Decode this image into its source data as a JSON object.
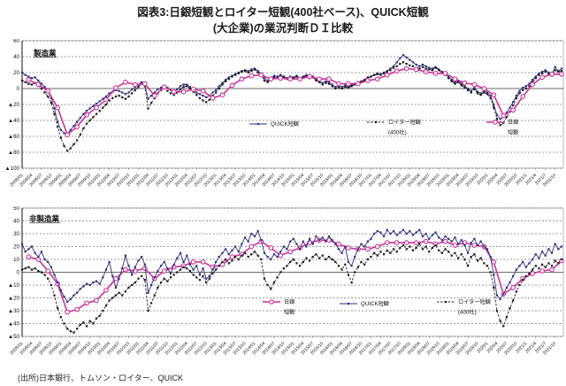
{
  "title_line1": "図表3:日銀短観とロイター短観(400社ベース)、QUICK短観",
  "title_line2": "(大企業)の業況判断ＤＩ比較",
  "source": "(出所)日本銀行、トムソン・ロイター、QUICK",
  "colors": {
    "boj": "#CC3399",
    "quick": "#2F2F7F",
    "reuters": "#1A1A1A"
  },
  "x_axis_labels": [
    "2008/01",
    "2008/04",
    "2008/07",
    "2008/10",
    "2009/01",
    "2009/04",
    "2009/07",
    "2009/10",
    "2010/01",
    "2010/04",
    "2010/07",
    "2010/10",
    "2011/01",
    "2011/04",
    "2011/07",
    "2011/10",
    "2012/01",
    "2012/04",
    "2012/07",
    "2012/10",
    "2013/01",
    "2013/04",
    "2013/07",
    "2013/10",
    "2014/01",
    "2014/04",
    "2014/07",
    "2014/10",
    "2015/01",
    "2015/04",
    "2015/07",
    "2015/10",
    "2016/01",
    "2016/04",
    "2016/07",
    "2016/10",
    "2017/01",
    "2017/04",
    "2017/07",
    "2017/10",
    "2018/01",
    "2018/04",
    "2018/07",
    "2018/10",
    "2019/01",
    "2019/04",
    "2019/07",
    "2019/10",
    "2020/1",
    "2020/4",
    "2020/7",
    "2020/10",
    "2021/1",
    "2021/4",
    "2021/7",
    "2021/10"
  ],
  "chart_data": [
    {
      "type": "line",
      "label": "製造業",
      "ylim": [
        -100,
        60
      ],
      "ytick_step": 20,
      "ytick_labels": [
        "60",
        "40",
        "20",
        "0",
        "▲20",
        "▲40",
        "▲60",
        "▲80",
        "▲100"
      ],
      "x_start": "2008/01",
      "x_end": "2021/12",
      "grid": "horizontal-dashed",
      "legend_position": "inside-lower-right",
      "series": [
        {
          "name": "QUICK短観",
          "key": "quick",
          "freq": "monthly",
          "line": "solid",
          "marker": "square",
          "values": [
            20,
            17,
            15,
            13,
            14,
            10,
            6,
            2,
            -3,
            -12,
            -25,
            -42,
            -52,
            -56,
            -57,
            -52,
            -47,
            -42,
            -37,
            -32,
            -28,
            -25,
            -22,
            -19,
            -16,
            -13,
            -10,
            -6,
            -4,
            -2,
            -3,
            -5,
            -7,
            -5,
            -1,
            2,
            5,
            8,
            4,
            -13,
            -9,
            -5,
            -1,
            1,
            3,
            1,
            -2,
            -3,
            -1,
            3,
            5,
            5,
            2,
            -2,
            -5,
            -7,
            -9,
            -11,
            -9,
            -5,
            -2,
            3,
            7,
            11,
            14,
            16,
            18,
            20,
            22,
            23,
            22,
            24,
            25,
            22,
            19,
            13,
            10,
            13,
            16,
            15,
            17,
            15,
            13,
            15,
            14,
            16,
            13,
            15,
            17,
            14,
            15,
            11,
            9,
            7,
            9,
            8,
            5,
            2,
            3,
            2,
            4,
            2,
            4,
            6,
            8,
            9,
            11,
            14,
            15,
            17,
            19,
            18,
            20,
            22,
            25,
            28,
            33,
            38,
            42,
            39,
            36,
            33,
            30,
            28,
            30,
            28,
            26,
            25,
            27,
            24,
            21,
            18,
            15,
            11,
            8,
            10,
            6,
            3,
            0,
            -3,
            1,
            -4,
            -6,
            -3,
            -5,
            -9,
            -20,
            -33,
            -38,
            -36,
            -30,
            -24,
            -17,
            -9,
            -3,
            1,
            3,
            6,
            11,
            15,
            19,
            21,
            23,
            20,
            18,
            27,
            22,
            25
          ]
        },
        {
          "name": "ロイター短観(400社)",
          "key": "reuters",
          "freq": "monthly",
          "line": "dashed",
          "marker": "square",
          "values": [
            10,
            8,
            6,
            5,
            7,
            4,
            0,
            -5,
            -10,
            -18,
            -32,
            -48,
            -62,
            -72,
            -78,
            -75,
            -70,
            -65,
            -58,
            -50,
            -44,
            -40,
            -36,
            -32,
            -28,
            -24,
            -20,
            -15,
            -12,
            -10,
            -9,
            -11,
            -13,
            -10,
            -6,
            -2,
            2,
            6,
            3,
            -25,
            -18,
            -12,
            -6,
            -2,
            0,
            -3,
            -6,
            -8,
            -5,
            -1,
            2,
            3,
            0,
            -4,
            -8,
            -12,
            -15,
            -17,
            -14,
            -9,
            -5,
            0,
            5,
            9,
            12,
            15,
            17,
            19,
            21,
            22,
            20,
            22,
            24,
            20,
            17,
            10,
            8,
            11,
            14,
            13,
            16,
            14,
            12,
            14,
            13,
            15,
            12,
            14,
            16,
            13,
            14,
            10,
            8,
            5,
            7,
            6,
            3,
            0,
            1,
            0,
            2,
            1,
            3,
            5,
            7,
            8,
            10,
            13,
            15,
            17,
            18,
            17,
            19,
            21,
            23,
            26,
            28,
            31,
            33,
            31,
            29,
            28,
            26,
            25,
            27,
            25,
            24,
            23,
            26,
            23,
            20,
            17,
            13,
            9,
            6,
            8,
            4,
            1,
            -2,
            -5,
            -1,
            -6,
            -8,
            -5,
            -7,
            -12,
            -24,
            -38,
            -46,
            -43,
            -36,
            -29,
            -21,
            -12,
            -6,
            -2,
            0,
            3,
            8,
            13,
            17,
            19,
            21,
            18,
            16,
            23,
            21,
            22
          ]
        },
        {
          "name": "日銀短観",
          "key": "boj",
          "freq": "quarterly",
          "line": "solid",
          "marker": "circle",
          "values": [
            11,
            5,
            -3,
            -24,
            -58,
            -48,
            -33,
            -24,
            -14,
            1,
            8,
            5,
            6,
            -9,
            2,
            -4,
            -4,
            -1,
            -3,
            -12,
            -8,
            4,
            12,
            16,
            17,
            12,
            13,
            12,
            12,
            15,
            12,
            12,
            6,
            6,
            6,
            10,
            12,
            17,
            22,
            25,
            24,
            21,
            19,
            19,
            12,
            7,
            5,
            0,
            -8,
            -34,
            -27,
            -10,
            5,
            14,
            18,
            18
          ]
        }
      ],
      "legend": [
        {
          "key": "quick",
          "lines": [
            "QUICK短観"
          ]
        },
        {
          "key": "reuters",
          "lines": [
            "ロイター短観",
            "(400社)"
          ]
        },
        {
          "key": "boj",
          "lines": [
            "日銀",
            "短観"
          ]
        }
      ]
    },
    {
      "type": "line",
      "label": "非製造業",
      "ylim": [
        -50,
        50
      ],
      "ytick_step": 10,
      "ytick_labels": [
        "50",
        "40",
        "30",
        "20",
        "10",
        "0",
        "▲10",
        "▲20",
        "▲30",
        "▲40",
        "▲50"
      ],
      "x_start": "2008/01",
      "x_end": "2021/12",
      "grid": "horizontal-dashed",
      "legend_position": "inside-lower-center",
      "series": [
        {
          "name": "日銀短観",
          "key": "boj",
          "freq": "quarterly",
          "line": "solid",
          "marker": "circle",
          "values": [
            12,
            10,
            1,
            -9,
            -31,
            -29,
            -24,
            -22,
            -14,
            -5,
            2,
            1,
            3,
            -5,
            1,
            4,
            5,
            8,
            8,
            4,
            6,
            12,
            14,
            20,
            24,
            19,
            13,
            16,
            19,
            23,
            25,
            25,
            22,
            19,
            18,
            18,
            20,
            23,
            23,
            23,
            23,
            24,
            22,
            24,
            21,
            23,
            21,
            20,
            8,
            -17,
            -12,
            -5,
            -1,
            1,
            2,
            9
          ]
        },
        {
          "name": "QUICK短観",
          "key": "quick",
          "freq": "monthly",
          "line": "solid",
          "marker": "square",
          "values": [
            22,
            16,
            18,
            20,
            15,
            12,
            16,
            10,
            8,
            4,
            -2,
            -8,
            -14,
            -19,
            -23,
            -21,
            -18,
            -16,
            -13,
            -11,
            -9,
            -10,
            -8,
            -7,
            -9,
            -4,
            2,
            8,
            -3,
            -12,
            -5,
            3,
            13,
            5,
            -2,
            4,
            9,
            12,
            6,
            -16,
            -10,
            -4,
            1,
            5,
            8,
            3,
            -1,
            6,
            11,
            15,
            8,
            13,
            6,
            2,
            5,
            -2,
            3,
            -5,
            -3,
            2,
            8,
            12,
            15,
            18,
            14,
            17,
            20,
            16,
            22,
            27,
            24,
            30,
            28,
            32,
            25,
            15,
            12,
            10,
            14,
            12,
            16,
            20,
            18,
            24,
            26,
            22,
            18,
            24,
            20,
            26,
            22,
            28,
            25,
            27,
            24,
            28,
            25,
            22,
            18,
            15,
            20,
            8,
            5,
            12,
            18,
            22,
            20,
            24,
            26,
            30,
            32,
            31,
            28,
            33,
            30,
            32,
            29,
            31,
            33,
            30,
            32,
            29,
            31,
            33,
            28,
            30,
            26,
            29,
            31,
            27,
            25,
            28,
            26,
            24,
            27,
            22,
            25,
            21,
            15,
            23,
            26,
            21,
            24,
            20,
            18,
            12,
            -2,
            -18,
            -21,
            -17,
            -12,
            -8,
            -3,
            2,
            5,
            8,
            4,
            7,
            10,
            14,
            11,
            16,
            13,
            18,
            15,
            22,
            18,
            20
          ]
        },
        {
          "name": "ロイター短観(400社)",
          "key": "reuters",
          "freq": "monthly",
          "line": "dashed",
          "marker": "square",
          "values": [
            2,
            3,
            4,
            2,
            3,
            1,
            0,
            -2,
            -5,
            -10,
            -18,
            -28,
            -35,
            -40,
            -44,
            -46,
            -47,
            -44,
            -41,
            -39,
            -42,
            -38,
            -40,
            -36,
            -34,
            -30,
            -26,
            -22,
            -20,
            -18,
            -16,
            -18,
            -15,
            -12,
            -10,
            -8,
            -5,
            -3,
            -6,
            -30,
            -24,
            -18,
            -12,
            -8,
            -5,
            -7,
            -4,
            -2,
            0,
            2,
            4,
            3,
            1,
            -2,
            -4,
            -6,
            -3,
            -8,
            -5,
            -1,
            2,
            5,
            8,
            10,
            7,
            9,
            12,
            10,
            13,
            15,
            12,
            14,
            16,
            13,
            10,
            -5,
            -10,
            -13,
            -8,
            -4,
            0,
            3,
            5,
            8,
            10,
            7,
            5,
            8,
            11,
            9,
            12,
            14,
            11,
            13,
            10,
            12,
            10,
            8,
            5,
            2,
            6,
            -2,
            -8,
            0,
            4,
            8,
            6,
            10,
            12,
            15,
            13,
            16,
            14,
            17,
            15,
            18,
            16,
            19,
            21,
            18,
            20,
            17,
            19,
            22,
            18,
            20,
            16,
            19,
            21,
            17,
            15,
            18,
            16,
            13,
            15,
            11,
            14,
            10,
            5,
            12,
            14,
            9,
            11,
            7,
            5,
            0,
            -12,
            -30,
            -38,
            -42,
            -35,
            -28,
            -22,
            -15,
            -10,
            -6,
            -3,
            -1,
            2,
            5,
            3,
            6,
            4,
            7,
            5,
            9,
            7,
            10
          ]
        }
      ],
      "legend": [
        {
          "key": "boj",
          "lines": [
            "日銀",
            "短観"
          ]
        },
        {
          "key": "quick",
          "lines": [
            "QUICK短観"
          ]
        },
        {
          "key": "reuters",
          "lines": [
            "ロイター短観",
            "(400社)"
          ]
        }
      ]
    }
  ]
}
